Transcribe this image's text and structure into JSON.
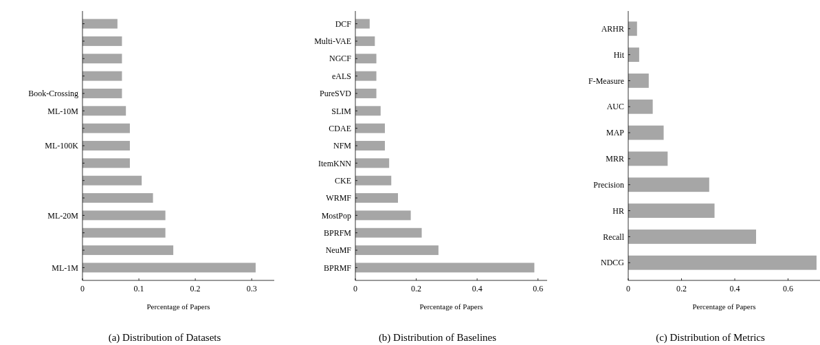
{
  "chart_data": [
    {
      "type": "bar",
      "orientation": "horizontal",
      "title": "(a)  Distribution of Datasets",
      "xlabel": "Percentage of Papers",
      "categories": [
        null,
        null,
        null,
        null,
        "Book-Crossing",
        "ML-10M",
        null,
        "ML-100K",
        null,
        null,
        null,
        "ML-20M",
        null,
        null,
        "ML-1M"
      ],
      "values": [
        0.062,
        0.07,
        0.07,
        0.07,
        0.07,
        0.077,
        0.084,
        0.084,
        0.084,
        0.105,
        0.125,
        0.147,
        0.147,
        0.161,
        0.307
      ],
      "color": "#a6a6a6",
      "xlim": [
        0,
        0.34
      ],
      "xticks": [
        0,
        0.1,
        0.2,
        0.3
      ],
      "grid": false
    },
    {
      "type": "bar",
      "orientation": "horizontal",
      "title": "(b)  Distribution of Baselines",
      "xlabel": "Percentage of Papers",
      "categories": [
        "DCF",
        "Multi-VAE",
        "NGCF",
        "eALS",
        "PureSVD",
        "SLIM",
        "CDAE",
        "NFM",
        "ItemKNN",
        "CKE",
        "WRMF",
        "MostPop",
        "BPRFM",
        "NeuMF",
        "BPRMF"
      ],
      "values": [
        0.047,
        0.064,
        0.069,
        0.069,
        0.069,
        0.083,
        0.097,
        0.097,
        0.111,
        0.118,
        0.14,
        0.182,
        0.218,
        0.273,
        0.588
      ],
      "color": "#a6a6a6",
      "xlim": [
        0,
        0.63
      ],
      "xticks": [
        0,
        0.2,
        0.4,
        0.6
      ],
      "grid": false
    },
    {
      "type": "bar",
      "orientation": "horizontal",
      "title": "(c)  Distribution of Metrics",
      "xlabel": "Percentage of Papers",
      "categories": [
        "ARHR",
        "Hit",
        "F-Measure",
        "AUC",
        "MAP",
        "MRR",
        "Precision",
        "HR",
        "Recall",
        "NDCG"
      ],
      "values": [
        0.033,
        0.041,
        0.077,
        0.092,
        0.133,
        0.148,
        0.304,
        0.324,
        0.48,
        0.707
      ],
      "color": "#a6a6a6",
      "xlim": [
        0,
        0.72
      ],
      "xticks": [
        0,
        0.2,
        0.4,
        0.6
      ],
      "grid": false
    }
  ]
}
